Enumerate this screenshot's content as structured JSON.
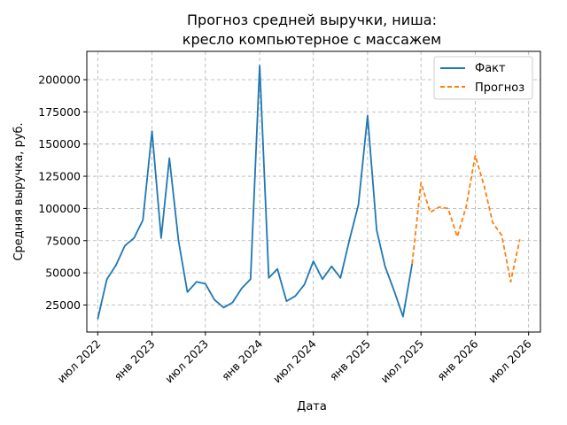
{
  "chart_data": {
    "type": "line",
    "title": [
      "Прогноз средней выручки, ниша:",
      "кресло компьютерное с массажем"
    ],
    "xlabel": "Дата",
    "ylabel": "Средняя выручка, руб.",
    "x_ticks": [
      {
        "date": "2022-07-01",
        "label": "июл 2022"
      },
      {
        "date": "2023-01-01",
        "label": "янв 2023"
      },
      {
        "date": "2023-07-01",
        "label": "июл 2023"
      },
      {
        "date": "2024-01-01",
        "label": "янв 2024"
      },
      {
        "date": "2024-07-01",
        "label": "июл 2024"
      },
      {
        "date": "2025-01-01",
        "label": "янв 2025"
      },
      {
        "date": "2025-07-01",
        "label": "июл 2025"
      },
      {
        "date": "2026-01-01",
        "label": "янв 2026"
      },
      {
        "date": "2026-07-01",
        "label": "июл 2026"
      }
    ],
    "y_ticks": [
      25000,
      50000,
      75000,
      100000,
      125000,
      150000,
      175000,
      200000
    ],
    "xlim": [
      "2022-05-25",
      "2026-08-10"
    ],
    "ylim": [
      4000,
      222000
    ],
    "grid": true,
    "legend_position": "top-right",
    "series": [
      {
        "name": "Факт",
        "color": "#1f77b4",
        "style": "solid",
        "points": [
          [
            "2022-07-01",
            14000
          ],
          [
            "2022-08-01",
            45000
          ],
          [
            "2022-09-01",
            56000
          ],
          [
            "2022-10-01",
            71000
          ],
          [
            "2022-11-01",
            77000
          ],
          [
            "2022-12-01",
            91000
          ],
          [
            "2023-01-01",
            160000
          ],
          [
            "2023-02-01",
            77000
          ],
          [
            "2023-03-01",
            139000
          ],
          [
            "2023-04-01",
            75000
          ],
          [
            "2023-05-01",
            35000
          ],
          [
            "2023-06-01",
            43000
          ],
          [
            "2023-07-01",
            41500
          ],
          [
            "2023-08-01",
            29000
          ],
          [
            "2023-09-01",
            23000
          ],
          [
            "2023-10-01",
            27000
          ],
          [
            "2023-11-01",
            38000
          ],
          [
            "2023-12-01",
            45000
          ],
          [
            "2024-01-01",
            211000
          ],
          [
            "2024-02-01",
            46000
          ],
          [
            "2024-03-01",
            53000
          ],
          [
            "2024-04-01",
            28000
          ],
          [
            "2024-05-01",
            32000
          ],
          [
            "2024-06-01",
            41000
          ],
          [
            "2024-07-01",
            59000
          ],
          [
            "2024-08-01",
            45000
          ],
          [
            "2024-09-01",
            55000
          ],
          [
            "2024-10-01",
            46000
          ],
          [
            "2024-11-01",
            76000
          ],
          [
            "2024-12-01",
            103000
          ],
          [
            "2025-01-01",
            172000
          ],
          [
            "2025-02-01",
            83000
          ],
          [
            "2025-03-01",
            55000
          ],
          [
            "2025-04-01",
            36000
          ],
          [
            "2025-05-01",
            16000
          ],
          [
            "2025-06-01",
            57000
          ]
        ]
      },
      {
        "name": "Прогноз",
        "color": "#ff7f0e",
        "style": "dashed",
        "points": [
          [
            "2025-06-01",
            57000
          ],
          [
            "2025-07-01",
            120000
          ],
          [
            "2025-08-01",
            97000
          ],
          [
            "2025-09-01",
            101000
          ],
          [
            "2025-10-01",
            100000
          ],
          [
            "2025-11-01",
            78000
          ],
          [
            "2025-12-01",
            101000
          ],
          [
            "2026-01-01",
            141000
          ],
          [
            "2026-02-01",
            117000
          ],
          [
            "2026-03-01",
            89000
          ],
          [
            "2026-04-01",
            79000
          ],
          [
            "2026-05-01",
            43000
          ],
          [
            "2026-06-01",
            76000
          ]
        ]
      }
    ]
  }
}
